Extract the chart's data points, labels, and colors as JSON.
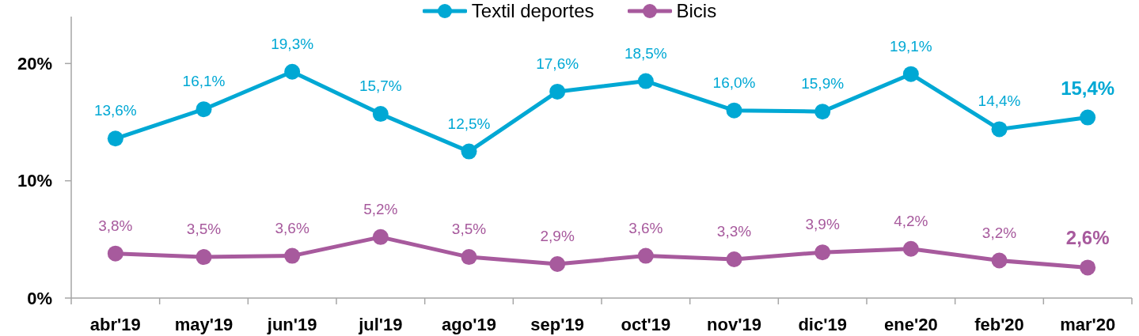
{
  "chart_data": {
    "type": "line",
    "categories": [
      "abr'19",
      "may'19",
      "jun'19",
      "jul'19",
      "ago'19",
      "sep'19",
      "oct'19",
      "nov'19",
      "dic'19",
      "ene'20",
      "feb'20",
      "mar'20"
    ],
    "series": [
      {
        "name": "Textil deportes",
        "color": "#00a8d4",
        "values": [
          13.6,
          16.1,
          19.3,
          15.7,
          12.5,
          17.6,
          18.5,
          16.0,
          15.9,
          19.1,
          14.4,
          15.4
        ],
        "value_labels": [
          "13,6%",
          "16,1%",
          "19,3%",
          "15,7%",
          "12,5%",
          "17,6%",
          "18,5%",
          "16,0%",
          "15,9%",
          "19,1%",
          "14,4%",
          "15,4%"
        ]
      },
      {
        "name": "Bicis",
        "color": "#a75a9d",
        "values": [
          3.8,
          3.5,
          3.6,
          5.2,
          3.5,
          2.9,
          3.6,
          3.3,
          3.9,
          4.2,
          3.2,
          2.6
        ],
        "value_labels": [
          "3,8%",
          "3,5%",
          "3,6%",
          "5,2%",
          "3,5%",
          "2,9%",
          "3,6%",
          "3,3%",
          "3,9%",
          "4,2%",
          "3,2%",
          "2,6%"
        ]
      }
    ],
    "ylim": [
      0,
      24
    ],
    "yticks": [
      {
        "value": 0,
        "label": "0%"
      },
      {
        "value": 10,
        "label": "10%"
      },
      {
        "value": 20,
        "label": "20%"
      }
    ],
    "legend": "top",
    "marker": "circle",
    "line_style": "solid"
  }
}
